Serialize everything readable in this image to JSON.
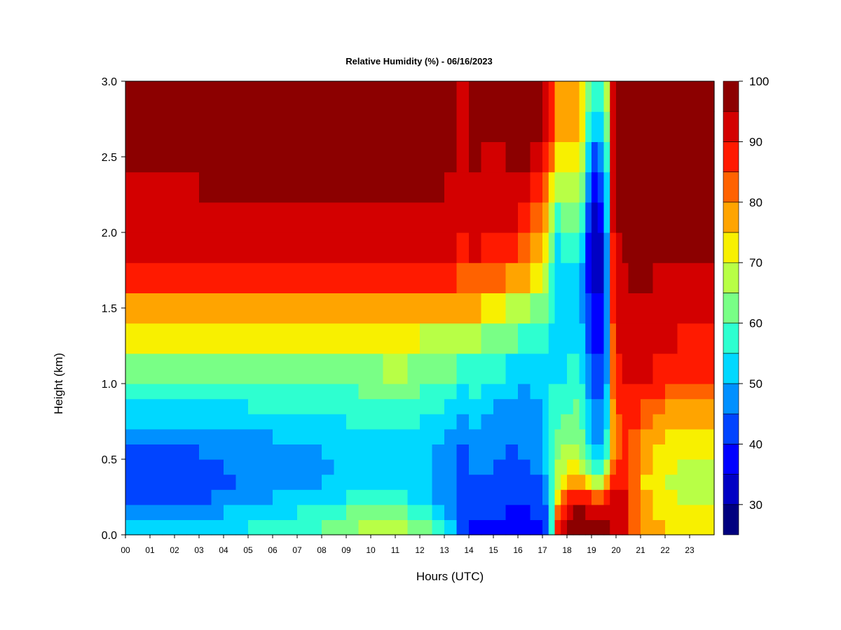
{
  "chart_data": {
    "type": "heatmap",
    "title": "Relative Humidity (%) - 06/16/2023",
    "xlabel": "Hours (UTC)",
    "ylabel": "Height (km)",
    "xlim": [
      0,
      24
    ],
    "ylim": [
      0,
      3
    ],
    "x_ticks": [
      0,
      1,
      2,
      3,
      4,
      5,
      6,
      7,
      8,
      9,
      10,
      11,
      12,
      13,
      14,
      15,
      16,
      17,
      18,
      19,
      20,
      21,
      22,
      23
    ],
    "x_tick_labels": [
      "00",
      "01",
      "02",
      "03",
      "04",
      "05",
      "06",
      "07",
      "08",
      "09",
      "10",
      "11",
      "12",
      "13",
      "14",
      "15",
      "16",
      "17",
      "18",
      "19",
      "20",
      "21",
      "22",
      "23"
    ],
    "y_ticks": [
      0.0,
      0.5,
      1.0,
      1.5,
      2.0,
      2.5,
      3.0
    ],
    "y_tick_labels": [
      "0.0",
      "0.5",
      "1.0",
      "1.5",
      "2.0",
      "2.5",
      "3.0"
    ],
    "x": [
      0,
      0.5,
      1,
      1.5,
      2,
      2.5,
      3,
      3.5,
      4,
      4.5,
      5,
      5.5,
      6,
      6.5,
      7,
      7.5,
      8,
      8.5,
      9,
      9.5,
      10,
      10.5,
      11,
      11.5,
      12,
      12.5,
      13,
      13.5,
      14,
      14.5,
      15,
      15.5,
      16,
      16.5,
      17,
      17.25,
      17.5,
      17.75,
      18,
      18.25,
      18.5,
      18.75,
      19,
      19.25,
      19.5,
      19.75,
      20,
      20.25,
      20.5,
      21,
      21.5,
      22,
      22.5,
      23,
      23.5,
      24
    ],
    "y": [
      0,
      0.1,
      0.2,
      0.3,
      0.4,
      0.5,
      0.6,
      0.7,
      0.8,
      0.9,
      1.0,
      1.2,
      1.4,
      1.6,
      1.8,
      2.0,
      2.2,
      2.4,
      2.6,
      2.8,
      3.0
    ],
    "profiles": {
      "x": [
        0,
        3,
        4.5,
        6,
        8,
        9,
        10,
        11,
        12,
        13.2,
        13.7,
        14,
        15,
        16,
        17,
        17.3,
        17.6,
        18,
        18.5,
        19,
        19.3,
        19.6,
        19.9,
        20.3,
        21,
        22,
        23,
        24
      ],
      "values": [
        [
          52,
          48,
          42,
          40,
          40,
          42,
          45,
          48,
          52,
          56,
          60,
          68,
          75,
          82,
          90,
          92,
          94,
          95,
          95,
          95,
          95
        ],
        [
          53,
          50,
          45,
          42,
          42,
          44,
          46,
          50,
          53,
          57,
          62,
          68,
          75,
          82,
          90,
          92,
          94,
          96,
          96,
          96,
          96
        ],
        [
          55,
          53,
          50,
          46,
          45,
          46,
          48,
          50,
          53,
          56,
          60,
          66,
          74,
          82,
          90,
          92,
          94,
          96,
          96,
          96,
          96
        ],
        [
          58,
          55,
          52,
          48,
          46,
          47,
          49,
          51,
          54,
          57,
          60,
          66,
          74,
          82,
          90,
          92,
          94,
          96,
          96,
          96,
          96
        ],
        [
          62,
          58,
          55,
          51,
          49,
          49,
          50,
          52,
          55,
          57,
          60,
          66,
          74,
          82,
          90,
          92,
          94,
          96,
          96,
          96,
          96
        ],
        [
          66,
          62,
          57,
          53,
          51,
          51,
          52,
          54,
          56,
          58,
          61,
          66,
          74,
          82,
          90,
          92,
          94,
          96,
          96,
          96,
          96
        ],
        [
          68,
          65,
          58,
          54,
          52,
          52,
          53,
          55,
          57,
          59,
          62,
          67,
          74,
          82,
          90,
          92,
          94,
          96,
          96,
          96,
          96
        ],
        [
          68,
          64,
          58,
          55,
          53,
          53,
          54,
          56,
          58,
          60,
          63,
          68,
          75,
          82,
          90,
          92,
          94,
          96,
          96,
          96,
          96
        ],
        [
          64,
          60,
          55,
          52,
          51,
          51,
          52,
          54,
          56,
          58,
          61,
          66,
          74,
          82,
          90,
          92,
          94,
          96,
          96,
          96,
          96
        ],
        [
          55,
          52,
          48,
          46,
          46,
          47,
          49,
          51,
          53,
          55,
          58,
          64,
          72,
          81,
          90,
          92,
          94,
          96,
          96,
          96,
          96
        ],
        [
          45,
          43,
          42,
          41,
          41,
          43,
          45,
          47,
          49,
          52,
          56,
          62,
          70,
          80,
          88,
          90,
          92,
          94,
          94,
          94,
          94
        ],
        [
          40,
          40,
          42,
          44,
          46,
          47,
          48,
          50,
          52,
          55,
          58,
          64,
          72,
          82,
          90,
          92,
          94,
          96,
          96,
          96,
          96
        ],
        [
          38,
          40,
          42,
          43,
          44,
          45,
          46,
          47,
          48,
          50,
          53,
          58,
          66,
          76,
          86,
          90,
          92,
          94,
          95,
          95,
          95
        ],
        [
          36,
          38,
          40,
          42,
          43,
          44,
          45,
          46,
          47,
          48,
          51,
          56,
          64,
          74,
          84,
          90,
          94,
          96,
          96,
          96,
          96
        ],
        [
          38,
          40,
          42,
          44,
          45,
          46,
          47,
          48,
          49,
          50,
          52,
          55,
          60,
          66,
          72,
          78,
          84,
          90,
          94,
          96,
          96
        ],
        [
          44,
          46,
          50,
          54,
          56,
          57,
          58,
          58,
          58,
          57,
          55,
          54,
          56,
          60,
          64,
          68,
          74,
          80,
          86,
          90,
          92
        ],
        [
          90,
          86,
          76,
          70,
          66,
          64,
          62,
          60,
          58,
          56,
          54,
          52,
          50,
          50,
          52,
          56,
          62,
          68,
          74,
          78,
          80
        ],
        [
          94,
          94,
          90,
          82,
          72,
          68,
          64,
          62,
          60,
          58,
          56,
          54,
          52,
          52,
          54,
          58,
          64,
          70,
          74,
          76,
          78
        ],
        [
          98,
          98,
          94,
          86,
          74,
          70,
          66,
          64,
          62,
          60,
          58,
          56,
          54,
          54,
          56,
          60,
          66,
          72,
          76,
          78,
          80
        ],
        [
          98,
          97,
          92,
          80,
          62,
          55,
          52,
          50,
          48,
          46,
          44,
          42,
          38,
          34,
          32,
          34,
          36,
          42,
          50,
          56,
          58
        ],
        [
          97,
          96,
          90,
          76,
          58,
          52,
          48,
          46,
          45,
          44,
          42,
          40,
          36,
          32,
          31,
          33,
          35,
          40,
          47,
          52,
          55
        ],
        [
          96,
          95,
          92,
          86,
          72,
          60,
          54,
          52,
          50,
          48,
          47,
          46,
          44,
          42,
          42,
          44,
          48,
          54,
          58,
          62,
          64
        ],
        [
          94,
          94,
          92,
          90,
          86,
          80,
          78,
          78,
          80,
          82,
          84,
          86,
          88,
          90,
          92,
          94,
          95,
          96,
          96,
          96,
          96
        ],
        [
          92,
          92,
          92,
          92,
          90,
          88,
          88,
          88,
          88,
          90,
          90,
          92,
          93,
          94,
          95,
          96,
          97,
          98,
          98,
          98,
          98
        ],
        [
          80,
          80,
          78,
          76,
          76,
          78,
          80,
          82,
          85,
          88,
          90,
          92,
          94,
          95,
          96,
          97,
          98,
          98,
          98,
          98,
          98
        ],
        [
          76,
          74,
          72,
          70,
          70,
          72,
          74,
          76,
          78,
          82,
          86,
          90,
          92,
          94,
          95,
          96,
          97,
          98,
          98,
          98,
          98
        ],
        [
          74,
          72,
          70,
          68,
          68,
          70,
          72,
          74,
          76,
          80,
          84,
          88,
          91,
          93,
          95,
          96,
          97,
          98,
          98,
          98,
          98
        ],
        [
          74,
          72,
          70,
          68,
          68,
          70,
          72,
          74,
          76,
          80,
          84,
          88,
          91,
          93,
          95,
          96,
          97,
          98,
          98,
          98,
          98
        ]
      ]
    },
    "colorbar": {
      "min": 25,
      "max": 100,
      "step": 5,
      "ticks": [
        30,
        40,
        50,
        60,
        70,
        80,
        90,
        100
      ],
      "tick_labels": [
        "30",
        "40",
        "50",
        "60",
        "70",
        "80",
        "90",
        "100"
      ],
      "colors": [
        "#00007f",
        "#0000c4",
        "#0000ff",
        "#0044ff",
        "#0090ff",
        "#00d8ff",
        "#2effd0",
        "#79ff86",
        "#b8ff46",
        "#f8f000",
        "#ffa400",
        "#ff6200",
        "#ff1a00",
        "#d30000",
        "#8c0000"
      ],
      "placement": "right"
    }
  }
}
